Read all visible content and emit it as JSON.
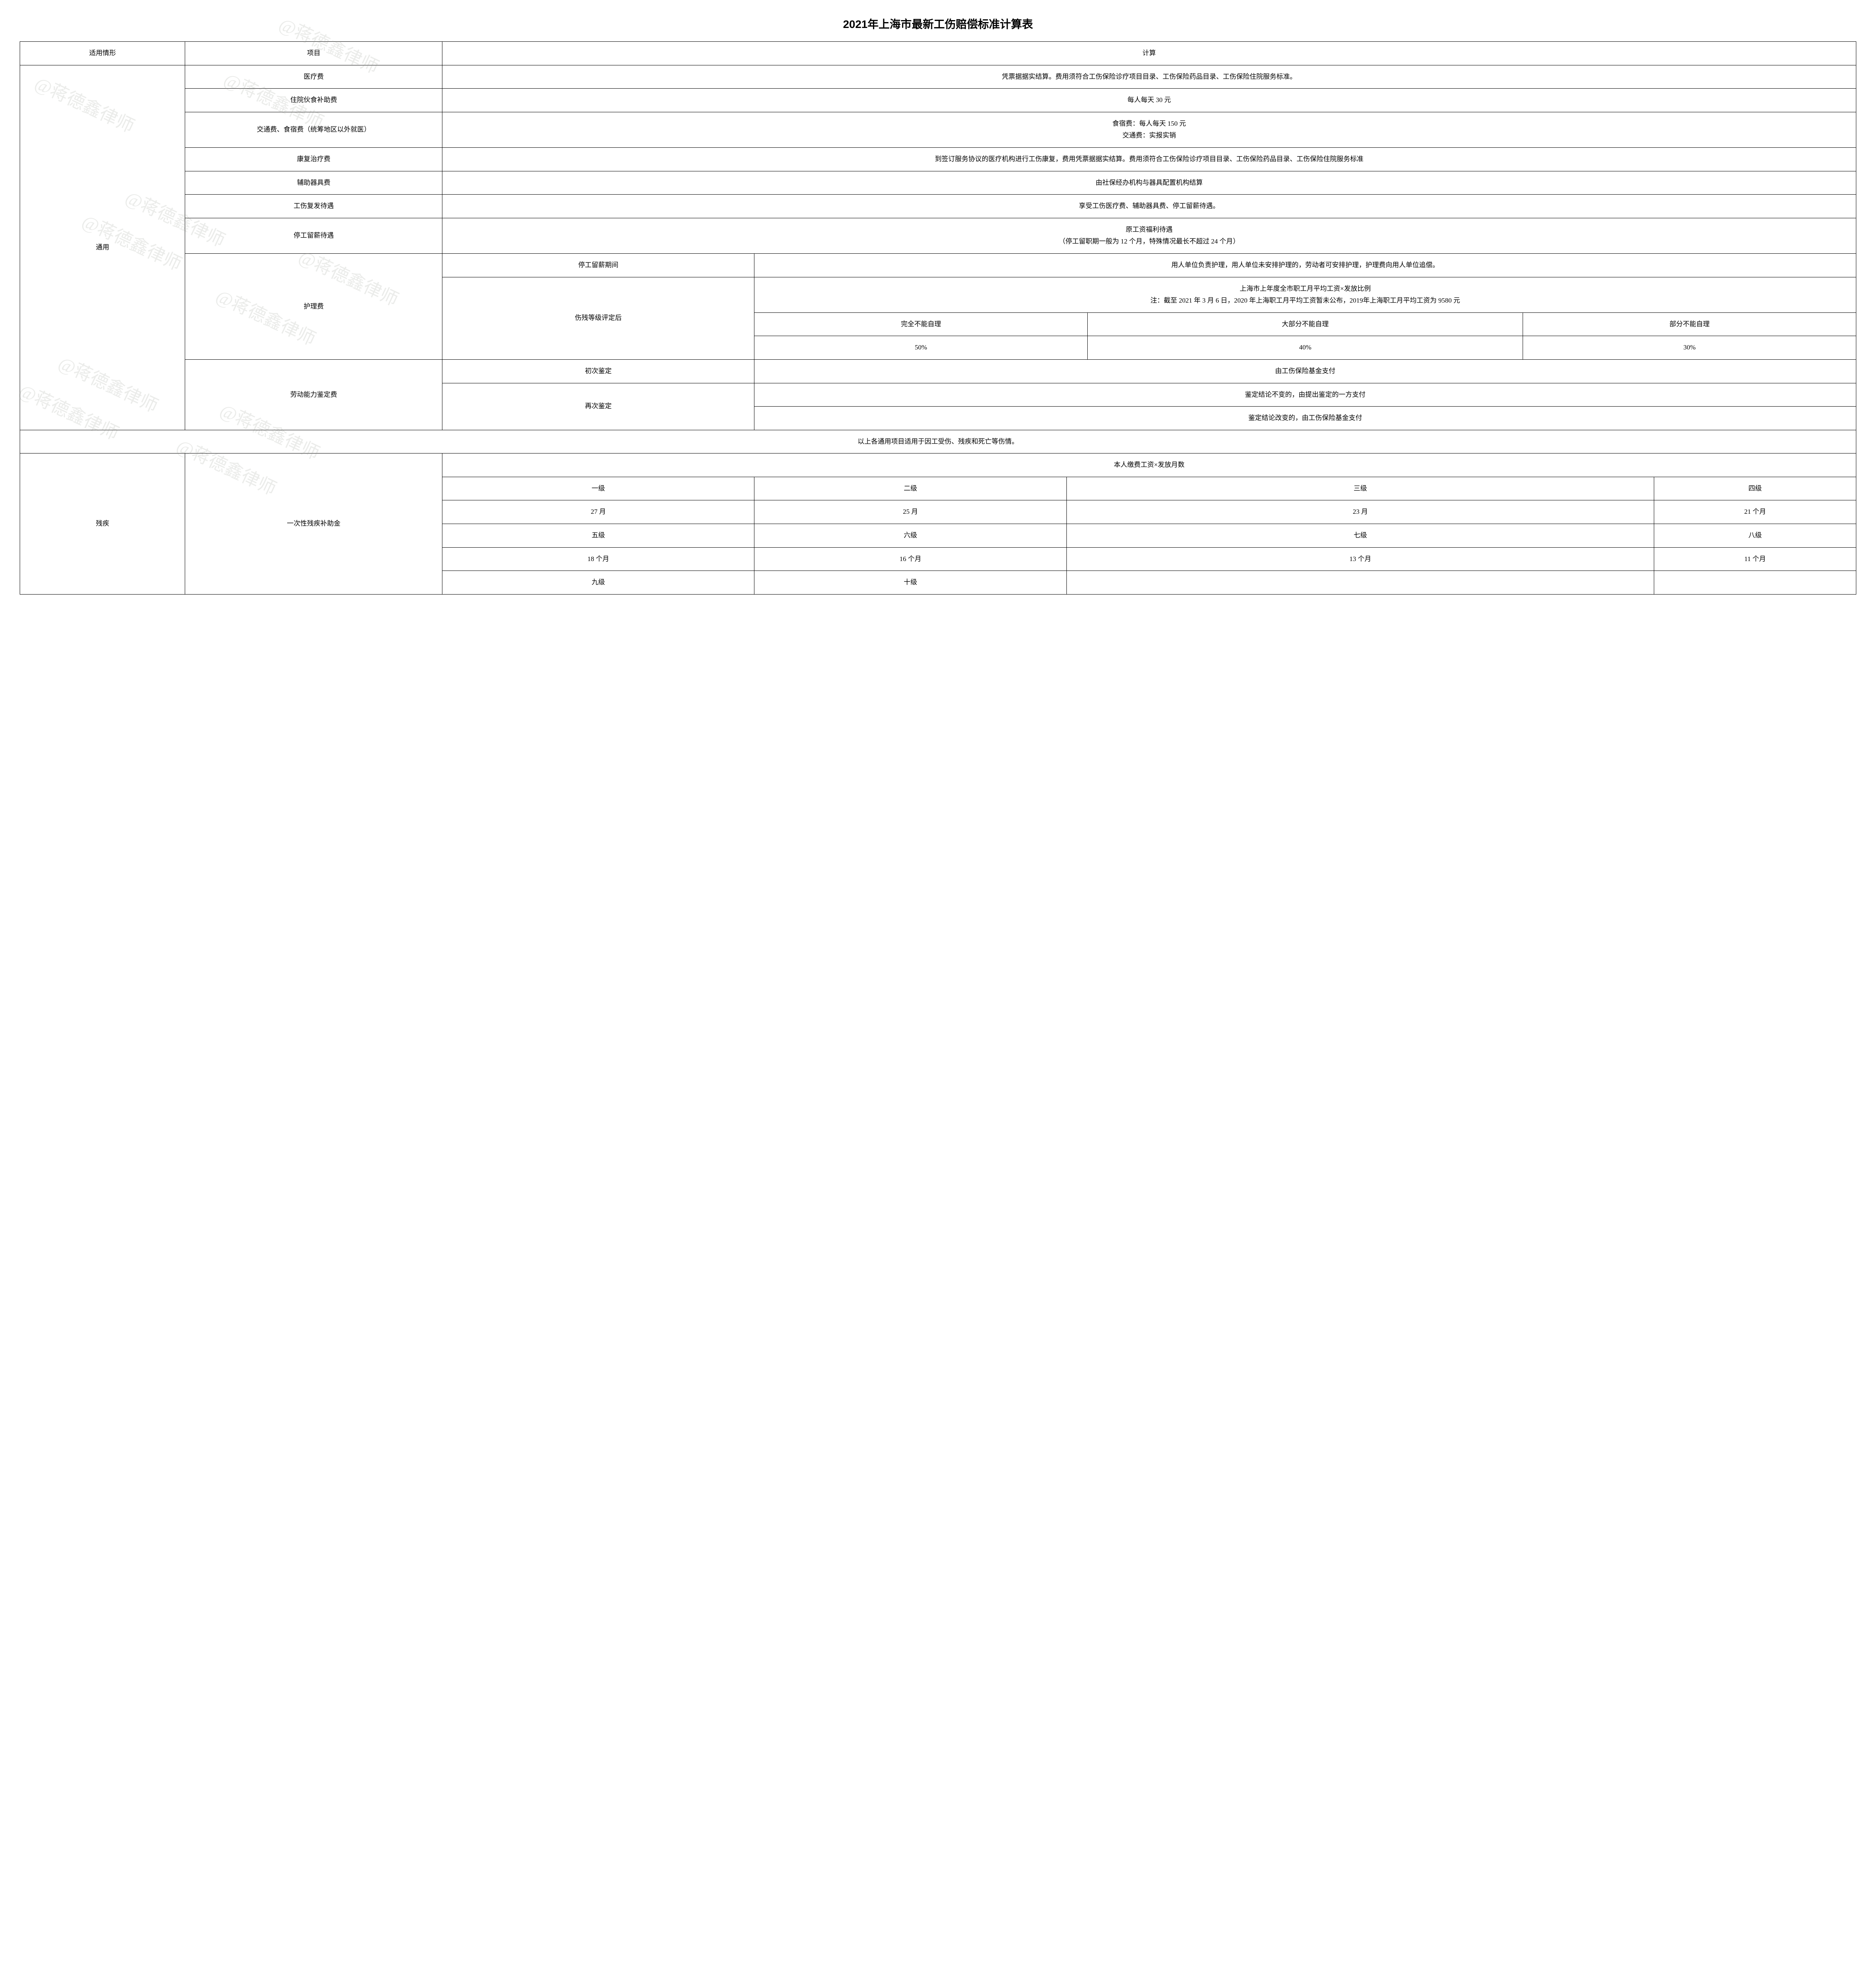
{
  "title": "2021年上海市最新工伤赔偿标准计算表",
  "watermark_text": "@蒋德鑫律师",
  "headers": {
    "situation": "适用情形",
    "item": "项目",
    "calc": "计算"
  },
  "section_general": "通用",
  "section_disability": "残疾",
  "rows": {
    "medical": {
      "item": "医疗费",
      "calc": "凭票据据实结算。费用须符合工伤保险诊疗项目目录、工伤保险药品目录、工伤保险住院服务标准。"
    },
    "meal": {
      "item": "住院伙食补助费",
      "calc": "每人每天 30 元"
    },
    "travel": {
      "item": "交通费、食宿费（统筹地区以外就医）",
      "calc": "食宿费：每人每天 150 元\n交通费：实报实销"
    },
    "rehab": {
      "item": "康复治疗费",
      "calc": "到签订服务协议的医疗机构进行工伤康复，费用凭票据据实结算。费用须符合工伤保险诊疗项目目录、工伤保险药品目录、工伤保险住院服务标准"
    },
    "aux": {
      "item": "辅助器具费",
      "calc": "由社保经办机构与器具配置机构结算"
    },
    "recur": {
      "item": "工伤复发待遇",
      "calc": "享受工伤医疗费、辅助器具费、停工留薪待遇。"
    },
    "stoppay": {
      "item": "停工留薪待遇",
      "calc": "原工资福利待遇\n（停工留职期一般为 12 个月，特殊情况最长不超过 24 个月）"
    },
    "nursing": {
      "item": "护理费",
      "period_label": "停工留薪期间",
      "period_calc": "用人单位负责护理，用人单位未安排护理的，劳动者可安排护理，护理费向用人单位追偿。",
      "after_label": "伤残等级评定后",
      "after_formula": "上海市上年度全市职工月平均工资×发放比例\n注：截至 2021 年 3 月 6 日，2020 年上海职工月平均工资暂未公布，2019年上海职工月平均工资为 9580 元",
      "levels": {
        "full": "完全不能自理",
        "most": "大部分不能自理",
        "part": "部分不能自理"
      },
      "rates": {
        "full": "50%",
        "most": "40%",
        "part": "30%"
      }
    },
    "appraisal": {
      "item": "劳动能力鉴定费",
      "first_label": "初次鉴定",
      "first_calc": "由工伤保险基金支付",
      "again_label": "再次鉴定",
      "again_unchanged": "鉴定结论不变的，由提出鉴定的一方支付",
      "again_changed": "鉴定结论改变的，由工伤保险基金支付"
    },
    "general_note": "以上各通用项目适用于因工受伤、残疾和死亡等伤情。",
    "lump": {
      "item": "一次性残疾补助金",
      "formula": "本人缴费工资×发放月数",
      "l1": "一级",
      "l2": "二级",
      "l3": "三级",
      "l4": "四级",
      "m1": "27 月",
      "m2": "25 月",
      "m3": "23 月",
      "m4": "21 个月",
      "l5": "五级",
      "l6": "六级",
      "l7": "七级",
      "l8": "八级",
      "m5": "18 个月",
      "m6": "16 个月",
      "m7": "13 个月",
      "m8": "11 个月",
      "l9": "九级",
      "l10": "十级"
    }
  },
  "colwidths": [
    "9%",
    "14%",
    "17%",
    "17%",
    "19%",
    "13%",
    "11%"
  ]
}
